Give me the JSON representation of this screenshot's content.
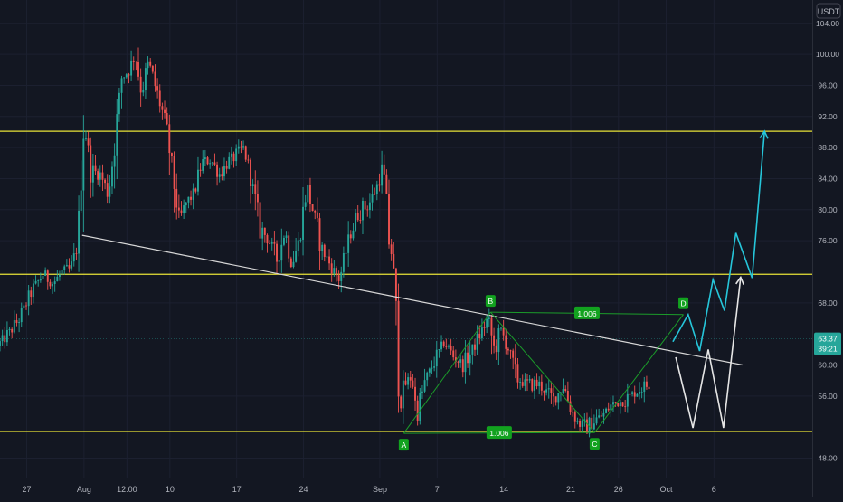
{
  "chart_data": {
    "type": "candlestick",
    "currency": "USDT",
    "y_axis": {
      "ticks": [
        "104.00",
        "100.00",
        "96.00",
        "92.00",
        "88.00",
        "84.00",
        "80.00",
        "76.00",
        "68.00",
        "60.00",
        "56.00",
        "48.00"
      ],
      "range": [
        45.5,
        107.0
      ]
    },
    "x_axis": {
      "ticks": [
        {
          "label": "27",
          "day": -5
        },
        {
          "label": "Aug",
          "day": 1
        },
        {
          "label": "12:00",
          "day": 5.5
        },
        {
          "label": "10",
          "day": 10
        },
        {
          "label": "17",
          "day": 17
        },
        {
          "label": "24",
          "day": 24
        },
        {
          "label": "Sep",
          "day": 32
        },
        {
          "label": "7",
          "day": 38
        },
        {
          "label": "14",
          "day": 45
        },
        {
          "label": "21",
          "day": 52
        },
        {
          "label": "26",
          "day": 57
        },
        {
          "label": "Oct",
          "day": 62
        },
        {
          "label": "6",
          "day": 67
        }
      ],
      "range": [
        -7.8,
        77.3
      ]
    },
    "horizontal_levels": [
      {
        "value": 90.1,
        "label": "90.10"
      },
      {
        "value": 71.68,
        "label": "71.68"
      },
      {
        "value": 51.44,
        "label": "51.44"
      }
    ],
    "current_price": {
      "value": 63.37,
      "label": "63.37",
      "countdown": "39:21"
    },
    "trendline": {
      "from": {
        "day": 0.8,
        "value": 76.7
      },
      "to": {
        "day": 70,
        "value": 60.0
      }
    },
    "pattern": {
      "points": [
        {
          "label": "A",
          "day": 34.5,
          "value": 51.2
        },
        {
          "label": "B",
          "day": 43.6,
          "value": 66.8
        },
        {
          "label": "C",
          "day": 54.5,
          "value": 51.3
        },
        {
          "label": "D",
          "day": 63.8,
          "value": 66.5
        }
      ],
      "ratios": [
        {
          "label": "1.006",
          "between": [
            "B",
            "D"
          ]
        },
        {
          "label": "1.006",
          "between": [
            "A",
            "C"
          ]
        }
      ]
    },
    "projections": [
      {
        "name": "cyan",
        "color": "#26c6da",
        "points": [
          [
            62.7,
            63.0
          ],
          [
            64.3,
            66.5
          ],
          [
            65.5,
            61.8
          ],
          [
            66.9,
            71.0
          ],
          [
            68.1,
            67.0
          ],
          [
            69.3,
            77.0
          ],
          [
            71.0,
            71.2
          ],
          [
            72.3,
            90.1
          ]
        ]
      },
      {
        "name": "white",
        "color": "#e6e6e6",
        "points": [
          [
            63.0,
            61.0
          ],
          [
            64.8,
            51.9
          ],
          [
            66.4,
            62.0
          ],
          [
            68.0,
            51.9
          ],
          [
            69.8,
            71.3
          ]
        ]
      }
    ],
    "candles": {
      "start_day": -7.8,
      "step_days": 0.25,
      "count": 273,
      "keypoints": [
        [
          -7.8,
          62.5
        ],
        [
          -6.5,
          64.2
        ],
        [
          -5.5,
          66.0
        ],
        [
          -4.2,
          69.5
        ],
        [
          -3.0,
          71.8
        ],
        [
          -2.0,
          70.5
        ],
        [
          -1.0,
          72.0
        ],
        [
          -0.2,
          72.2
        ],
        [
          0.6,
          75.5
        ],
        [
          1.2,
          91.5
        ],
        [
          2.0,
          85.0
        ],
        [
          3.0,
          84.5
        ],
        [
          3.8,
          82.0
        ],
        [
          4.5,
          89.0
        ],
        [
          5.2,
          97.0
        ],
        [
          6.0,
          98.0
        ],
        [
          6.6,
          100.0
        ],
        [
          7.3,
          95.0
        ],
        [
          8.0,
          99.0
        ],
        [
          8.8,
          95.5
        ],
        [
          9.6,
          92.0
        ],
        [
          10.3,
          87.0
        ],
        [
          11.2,
          78.5
        ],
        [
          12.0,
          81.0
        ],
        [
          12.8,
          82.0
        ],
        [
          13.6,
          86.0
        ],
        [
          14.5,
          86.5
        ],
        [
          15.5,
          84.5
        ],
        [
          16.3,
          86.0
        ],
        [
          17.2,
          87.0
        ],
        [
          18.0,
          88.0
        ],
        [
          18.8,
          84.0
        ],
        [
          19.6,
          78.0
        ],
        [
          20.6,
          76.0
        ],
        [
          21.5,
          73.5
        ],
        [
          22.3,
          77.5
        ],
        [
          23.0,
          73.0
        ],
        [
          23.8,
          76.0
        ],
        [
          24.6,
          83.0
        ],
        [
          25.4,
          79.0
        ],
        [
          26.2,
          75.0
        ],
        [
          27.0,
          73.0
        ],
        [
          28.0,
          71.0
        ],
        [
          29.0,
          76.0
        ],
        [
          29.6,
          78.5
        ],
        [
          30.3,
          80.0
        ],
        [
          31.0,
          80.5
        ],
        [
          31.8,
          82.5
        ],
        [
          32.6,
          85.5
        ],
        [
          33.1,
          77.0
        ],
        [
          33.6,
          73.5
        ],
        [
          34.1,
          62.5
        ],
        [
          34.4,
          55.0
        ],
        [
          34.9,
          57.5
        ],
        [
          35.6,
          58.5
        ],
        [
          36.1,
          53.5
        ],
        [
          37.0,
          58.0
        ],
        [
          38.2,
          61.0
        ],
        [
          39.0,
          63.0
        ],
        [
          40.0,
          61.0
        ],
        [
          41.0,
          60.0
        ],
        [
          42.0,
          62.0
        ],
        [
          43.6,
          66.0
        ],
        [
          44.3,
          61.5
        ],
        [
          44.9,
          64.5
        ],
        [
          45.6,
          62.5
        ],
        [
          46.5,
          58.5
        ],
        [
          47.5,
          57.5
        ],
        [
          49.0,
          57.5
        ],
        [
          50.5,
          55.5
        ],
        [
          51.5,
          57.5
        ],
        [
          52.2,
          54.5
        ],
        [
          53.0,
          52.5
        ],
        [
          54.0,
          52.0
        ],
        [
          54.8,
          53.0
        ],
        [
          55.6,
          53.5
        ],
        [
          56.6,
          55.0
        ],
        [
          58.0,
          55.5
        ],
        [
          59.5,
          57.0
        ],
        [
          60.5,
          57.5
        ],
        [
          61.3,
          61.0
        ],
        [
          62.2,
          63.4
        ]
      ]
    }
  }
}
